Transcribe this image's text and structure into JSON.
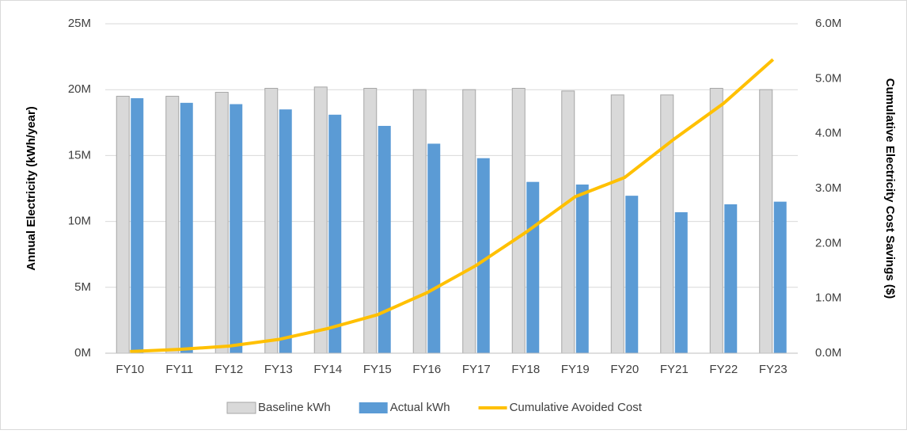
{
  "chart_data": {
    "type": "bar",
    "categories": [
      "FY10",
      "FY11",
      "FY12",
      "FY13",
      "FY14",
      "FY15",
      "FY16",
      "FY17",
      "FY18",
      "FY19",
      "FY20",
      "FY21",
      "FY22",
      "FY23"
    ],
    "series": [
      {
        "name": "Baseline kWh",
        "color": "#d9d9d9",
        "values": [
          19500000,
          19500000,
          19800000,
          20100000,
          20200000,
          20100000,
          20000000,
          20000000,
          20100000,
          19900000,
          19600000,
          19600000,
          20100000,
          20000000
        ]
      },
      {
        "name": "Actual kWh",
        "color": "#5b9bd5",
        "values": [
          19350000,
          19000000,
          18900000,
          18500000,
          18100000,
          17250000,
          15900000,
          14800000,
          13000000,
          12800000,
          11950000,
          10700000,
          11300000,
          11500000
        ]
      },
      {
        "name": "Cumulative Avoided Cost",
        "color": "#ffc000",
        "type": "line",
        "axis": "y2",
        "values": [
          30000,
          70000,
          130000,
          250000,
          450000,
          700000,
          1100000,
          1600000,
          2200000,
          2850000,
          3200000,
          3900000,
          4550000,
          5350000
        ]
      }
    ],
    "y_label": "Annual Electricity (kWh/year)",
    "y2_label": "Cumulative Electricity Cost Savings ($)",
    "ylim": [
      0,
      25000000
    ],
    "yticks": [
      {
        "value": 0,
        "label": "0M"
      },
      {
        "value": 5000000,
        "label": "5M"
      },
      {
        "value": 10000000,
        "label": "10M"
      },
      {
        "value": 15000000,
        "label": "15M"
      },
      {
        "value": 20000000,
        "label": "20M"
      },
      {
        "value": 25000000,
        "label": "25M"
      }
    ],
    "y2lim": [
      0,
      6000000
    ],
    "y2ticks": [
      {
        "value": 0,
        "label": "0.0M"
      },
      {
        "value": 1000000,
        "label": "1.0M"
      },
      {
        "value": 2000000,
        "label": "2.0M"
      },
      {
        "value": 3000000,
        "label": "3.0M"
      },
      {
        "value": 4000000,
        "label": "4.0M"
      },
      {
        "value": 5000000,
        "label": "5.0M"
      },
      {
        "value": 6000000,
        "label": "6.0M"
      }
    ],
    "grid": true,
    "legend": "bottom"
  }
}
